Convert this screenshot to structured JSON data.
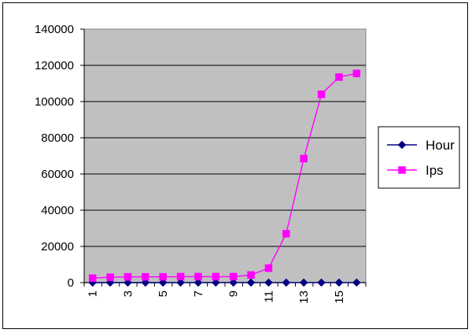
{
  "chart_data": {
    "type": "line",
    "title": "",
    "xlabel": "",
    "ylabel": "",
    "x": [
      1,
      2,
      3,
      4,
      5,
      6,
      7,
      8,
      9,
      10,
      11,
      12,
      13,
      14,
      15,
      16
    ],
    "x_tick_labels": [
      "1",
      "3",
      "5",
      "7",
      "9",
      "11",
      "13",
      "15"
    ],
    "x_tick_values": [
      1,
      3,
      5,
      7,
      9,
      11,
      13,
      15
    ],
    "ylim": [
      0,
      140000
    ],
    "y_ticks": [
      0,
      20000,
      40000,
      60000,
      80000,
      100000,
      120000,
      140000
    ],
    "y_tick_labels": [
      "0",
      "20000",
      "40000",
      "60000",
      "80000",
      "100000",
      "120000",
      "140000"
    ],
    "grid": true,
    "legend_position": "right",
    "background_color": "#c0c0c0",
    "series": [
      {
        "name": "Hour",
        "color": "#000080",
        "marker": "diamond",
        "values": [
          1,
          2,
          3,
          4,
          5,
          6,
          7,
          8,
          9,
          10,
          11,
          12,
          13,
          14,
          15,
          16
        ]
      },
      {
        "name": "Ips",
        "color": "#ff00ff",
        "marker": "square",
        "values": [
          2500,
          3000,
          3200,
          3200,
          3200,
          3300,
          3300,
          3300,
          3300,
          4200,
          8000,
          27000,
          68500,
          104000,
          113500,
          115500
        ]
      }
    ]
  }
}
